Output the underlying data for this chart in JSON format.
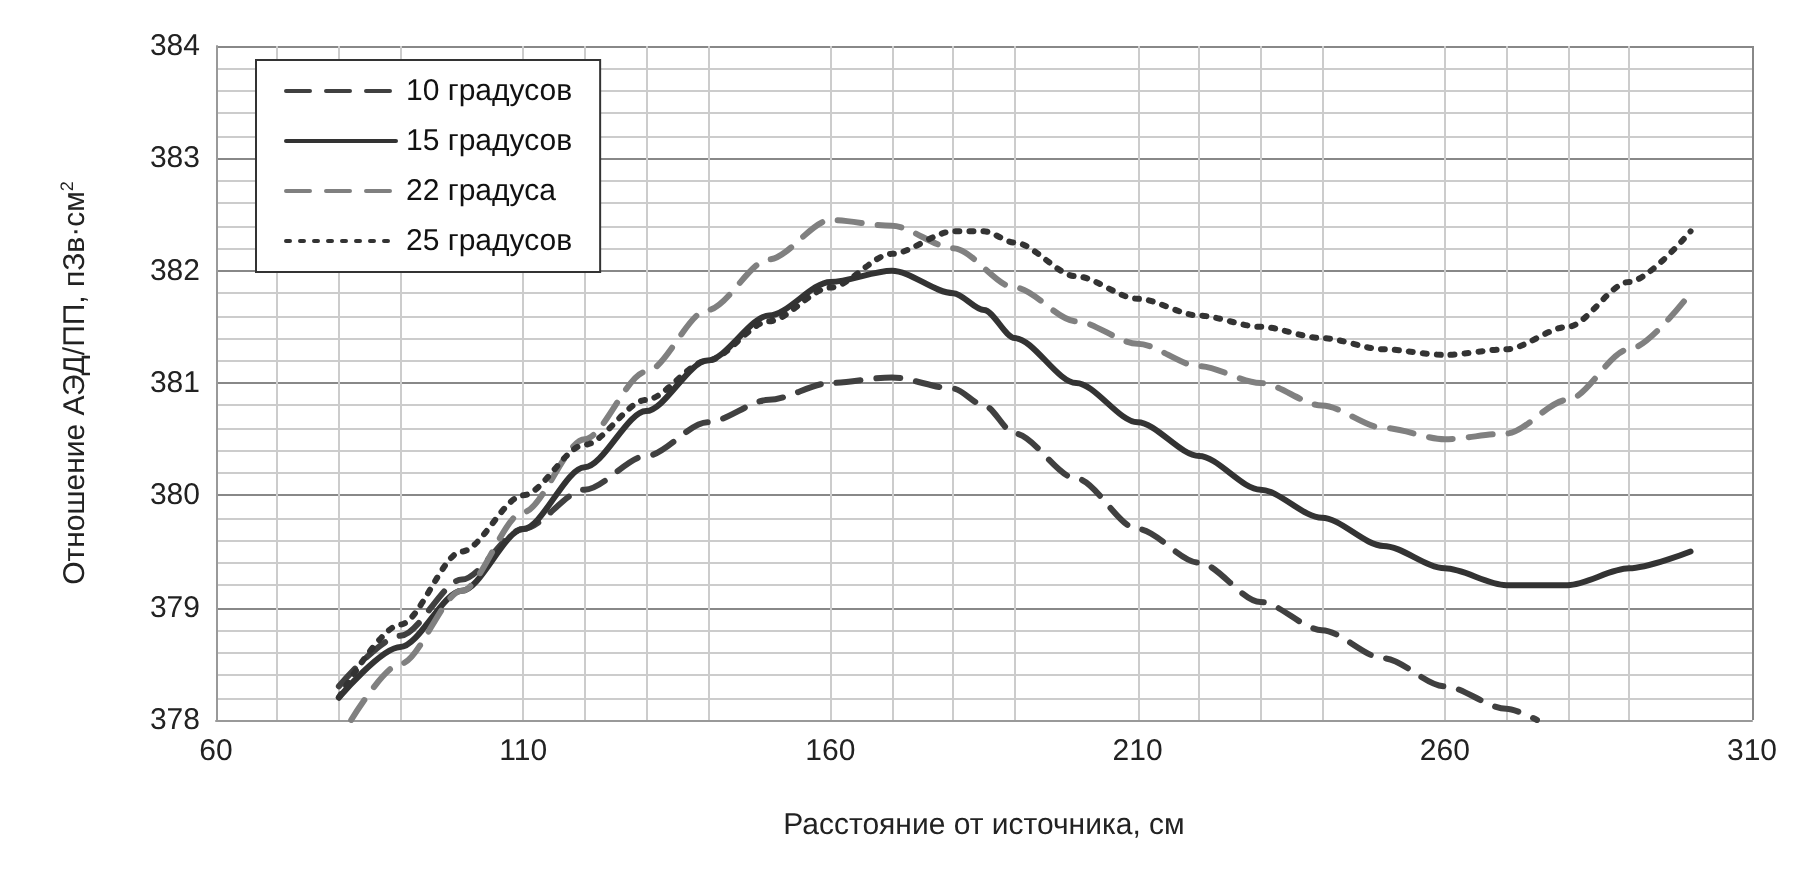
{
  "chart_data": {
    "type": "line",
    "xlabel": "Расстояние от источника, см",
    "ylabel": "Отношение АЭД/ПП, пЗв·см$^{2}$",
    "xlim": [
      60,
      310
    ],
    "xticks": [
      60,
      110,
      160,
      210,
      260,
      310
    ],
    "ylim": [
      378,
      384
    ],
    "yticks": [
      378,
      379,
      380,
      381,
      382,
      383,
      384
    ],
    "grid": true,
    "legend": "top left",
    "marker": "none",
    "series": [
      {
        "name": "10 градусов",
        "color": "#404040",
        "line_style": "dashed",
        "x": [
          80,
          90,
          100,
          110,
          120,
          130,
          140,
          150,
          160,
          170,
          180,
          185,
          190,
          200,
          210,
          220,
          230,
          240,
          250,
          260,
          270,
          275
        ],
        "values": [
          378.3,
          378.75,
          379.25,
          379.7,
          380.05,
          380.35,
          380.65,
          380.85,
          381.0,
          381.05,
          380.95,
          380.8,
          380.55,
          380.15,
          379.7,
          379.4,
          379.05,
          378.8,
          378.55,
          378.3,
          378.1,
          378.0
        ]
      },
      {
        "name": "15 градусов",
        "color": "#333333",
        "line_style": "solid",
        "x": [
          80,
          90,
          100,
          110,
          120,
          130,
          140,
          150,
          160,
          170,
          180,
          185,
          190,
          200,
          210,
          220,
          230,
          240,
          250,
          260,
          270,
          280,
          290,
          300
        ],
        "values": [
          378.2,
          378.65,
          379.15,
          379.7,
          380.25,
          380.75,
          381.2,
          381.6,
          381.9,
          382.0,
          381.8,
          381.65,
          381.4,
          381.0,
          380.65,
          380.35,
          380.05,
          379.8,
          379.55,
          379.35,
          379.2,
          379.2,
          379.35,
          379.5
        ]
      },
      {
        "name": "22 градуса",
        "color": "#808080",
        "line_style": "dashed",
        "x": [
          82,
          90,
          100,
          110,
          120,
          130,
          140,
          150,
          160,
          170,
          180,
          190,
          200,
          210,
          220,
          230,
          240,
          250,
          260,
          270,
          280,
          290,
          300
        ],
        "values": [
          378.0,
          378.5,
          379.15,
          379.85,
          380.5,
          381.1,
          381.65,
          382.1,
          382.45,
          382.4,
          382.2,
          381.85,
          381.55,
          381.35,
          381.15,
          381.0,
          380.8,
          380.6,
          380.5,
          380.55,
          380.85,
          381.3,
          381.8
        ]
      },
      {
        "name": "25 градусов",
        "color": "#333333",
        "line_style": "dotted",
        "x": [
          80,
          90,
          100,
          110,
          120,
          130,
          140,
          150,
          160,
          170,
          180,
          185,
          190,
          200,
          210,
          220,
          230,
          240,
          250,
          260,
          270,
          280,
          290,
          300
        ],
        "values": [
          378.2,
          378.85,
          379.5,
          380.0,
          380.45,
          380.85,
          381.2,
          381.55,
          381.85,
          382.15,
          382.35,
          382.35,
          382.25,
          381.95,
          381.75,
          381.6,
          381.5,
          381.4,
          381.3,
          381.25,
          381.3,
          381.5,
          381.9,
          382.35
        ]
      }
    ]
  }
}
